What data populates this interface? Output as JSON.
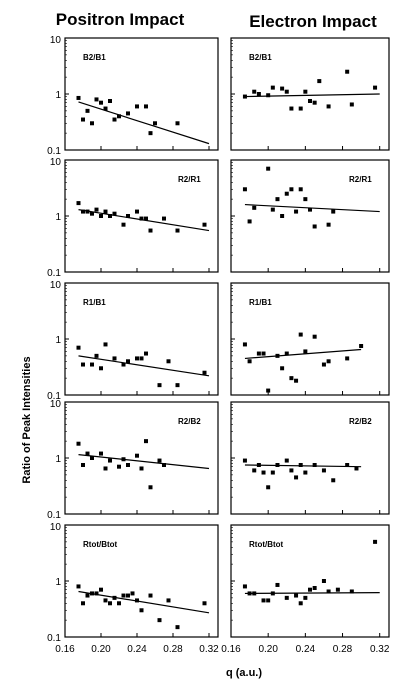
{
  "columns": {
    "left_title": "Positron Impact",
    "right_title": "Electron Impact"
  },
  "chart_data": {
    "type": "scatter",
    "ylabel": "Ratio of Peak Intensities",
    "xlabel": "q (a.u.)",
    "x_ticks": [
      "0.16",
      "0.20",
      "0.24",
      "0.28",
      "0.32"
    ],
    "y_ticks": [
      "0.1",
      "1",
      "10"
    ],
    "x_range": [
      0.16,
      0.33
    ],
    "y_range": [
      0.1,
      10
    ],
    "y_scale": "log",
    "marker": "filled-square",
    "grid": false,
    "panels": [
      {
        "column": "Positron Impact",
        "label": "B2/B1",
        "points": [
          [
            0.175,
            0.85
          ],
          [
            0.18,
            0.35
          ],
          [
            0.185,
            0.5
          ],
          [
            0.19,
            0.3
          ],
          [
            0.195,
            0.8
          ],
          [
            0.2,
            0.7
          ],
          [
            0.205,
            0.55
          ],
          [
            0.21,
            0.75
          ],
          [
            0.215,
            0.35
          ],
          [
            0.22,
            0.4
          ],
          [
            0.23,
            0.45
          ],
          [
            0.24,
            0.6
          ],
          [
            0.25,
            0.6
          ],
          [
            0.255,
            0.2
          ],
          [
            0.26,
            0.3
          ],
          [
            0.285,
            0.3
          ]
        ],
        "fit": [
          [
            0.175,
            0.72
          ],
          [
            0.32,
            0.13
          ]
        ]
      },
      {
        "column": "Electron Impact",
        "label": "B2/B1",
        "points": [
          [
            0.175,
            0.9
          ],
          [
            0.185,
            1.1
          ],
          [
            0.19,
            1.0
          ],
          [
            0.2,
            0.95
          ],
          [
            0.205,
            1.3
          ],
          [
            0.215,
            1.25
          ],
          [
            0.22,
            1.1
          ],
          [
            0.225,
            0.55
          ],
          [
            0.235,
            0.55
          ],
          [
            0.24,
            1.1
          ],
          [
            0.245,
            0.75
          ],
          [
            0.25,
            0.7
          ],
          [
            0.255,
            1.7
          ],
          [
            0.265,
            0.6
          ],
          [
            0.285,
            2.5
          ],
          [
            0.29,
            0.65
          ],
          [
            0.315,
            1.3
          ]
        ],
        "fit": [
          [
            0.175,
            0.9
          ],
          [
            0.32,
            1.0
          ]
        ]
      },
      {
        "column": "Positron Impact",
        "label": "R2/R1",
        "points": [
          [
            0.175,
            1.7
          ],
          [
            0.18,
            1.2
          ],
          [
            0.185,
            1.2
          ],
          [
            0.19,
            1.1
          ],
          [
            0.195,
            1.3
          ],
          [
            0.2,
            1.0
          ],
          [
            0.205,
            1.2
          ],
          [
            0.21,
            1.0
          ],
          [
            0.215,
            1.1
          ],
          [
            0.225,
            0.7
          ],
          [
            0.23,
            1.0
          ],
          [
            0.24,
            1.2
          ],
          [
            0.245,
            0.9
          ],
          [
            0.25,
            0.9
          ],
          [
            0.255,
            0.55
          ],
          [
            0.27,
            0.9
          ],
          [
            0.285,
            0.55
          ],
          [
            0.315,
            0.7
          ]
        ],
        "fit": [
          [
            0.175,
            1.3
          ],
          [
            0.32,
            0.55
          ]
        ]
      },
      {
        "column": "Electron Impact",
        "label": "R2/R1",
        "points": [
          [
            0.175,
            3.0
          ],
          [
            0.18,
            0.8
          ],
          [
            0.185,
            1.4
          ],
          [
            0.2,
            7.0
          ],
          [
            0.205,
            1.3
          ],
          [
            0.21,
            2.0
          ],
          [
            0.215,
            1.0
          ],
          [
            0.22,
            2.5
          ],
          [
            0.225,
            3.0
          ],
          [
            0.23,
            1.2
          ],
          [
            0.235,
            3.0
          ],
          [
            0.24,
            2.0
          ],
          [
            0.245,
            1.3
          ],
          [
            0.25,
            0.65
          ],
          [
            0.265,
            0.7
          ],
          [
            0.27,
            1.2
          ]
        ],
        "fit": [
          [
            0.175,
            1.6
          ],
          [
            0.32,
            1.2
          ]
        ]
      },
      {
        "column": "Positron Impact",
        "label": "R1/B1",
        "points": [
          [
            0.175,
            0.7
          ],
          [
            0.18,
            0.35
          ],
          [
            0.19,
            0.35
          ],
          [
            0.195,
            0.5
          ],
          [
            0.2,
            0.3
          ],
          [
            0.205,
            0.8
          ],
          [
            0.215,
            0.45
          ],
          [
            0.225,
            0.35
          ],
          [
            0.23,
            0.4
          ],
          [
            0.24,
            0.45
          ],
          [
            0.245,
            0.45
          ],
          [
            0.25,
            0.55
          ],
          [
            0.265,
            0.15
          ],
          [
            0.275,
            0.4
          ],
          [
            0.285,
            0.15
          ],
          [
            0.315,
            0.25
          ]
        ],
        "fit": [
          [
            0.175,
            0.5
          ],
          [
            0.32,
            0.22
          ]
        ]
      },
      {
        "column": "Electron Impact",
        "label": "R1/B1",
        "points": [
          [
            0.175,
            0.8
          ],
          [
            0.18,
            0.4
          ],
          [
            0.19,
            0.55
          ],
          [
            0.195,
            0.55
          ],
          [
            0.2,
            0.12
          ],
          [
            0.21,
            0.5
          ],
          [
            0.215,
            0.3
          ],
          [
            0.22,
            0.55
          ],
          [
            0.225,
            0.2
          ],
          [
            0.23,
            0.18
          ],
          [
            0.235,
            1.2
          ],
          [
            0.24,
            0.6
          ],
          [
            0.25,
            1.1
          ],
          [
            0.26,
            0.35
          ],
          [
            0.265,
            0.4
          ],
          [
            0.285,
            0.45
          ],
          [
            0.3,
            0.75
          ]
        ],
        "fit": [
          [
            0.175,
            0.45
          ],
          [
            0.3,
            0.65
          ]
        ]
      },
      {
        "column": "Positron Impact",
        "label": "R2/B2",
        "points": [
          [
            0.175,
            1.8
          ],
          [
            0.18,
            0.75
          ],
          [
            0.185,
            1.2
          ],
          [
            0.19,
            1.0
          ],
          [
            0.2,
            1.2
          ],
          [
            0.205,
            0.65
          ],
          [
            0.21,
            0.9
          ],
          [
            0.22,
            0.7
          ],
          [
            0.225,
            0.95
          ],
          [
            0.23,
            0.75
          ],
          [
            0.24,
            1.1
          ],
          [
            0.245,
            0.65
          ],
          [
            0.25,
            2.0
          ],
          [
            0.255,
            0.3
          ],
          [
            0.265,
            0.9
          ],
          [
            0.27,
            0.75
          ]
        ],
        "fit": [
          [
            0.175,
            1.15
          ],
          [
            0.32,
            0.65
          ]
        ]
      },
      {
        "column": "Electron Impact",
        "label": "R2/B2",
        "points": [
          [
            0.175,
            0.9
          ],
          [
            0.185,
            0.6
          ],
          [
            0.19,
            0.75
          ],
          [
            0.195,
            0.55
          ],
          [
            0.2,
            0.3
          ],
          [
            0.205,
            0.55
          ],
          [
            0.21,
            0.75
          ],
          [
            0.22,
            0.9
          ],
          [
            0.225,
            0.6
          ],
          [
            0.23,
            0.45
          ],
          [
            0.235,
            0.75
          ],
          [
            0.24,
            0.55
          ],
          [
            0.25,
            0.75
          ],
          [
            0.26,
            0.6
          ],
          [
            0.27,
            0.4
          ],
          [
            0.285,
            0.75
          ],
          [
            0.295,
            0.65
          ]
        ],
        "fit": [
          [
            0.175,
            0.75
          ],
          [
            0.3,
            0.7
          ]
        ]
      },
      {
        "column": "Positron Impact",
        "label": "Rtot/Btot",
        "points": [
          [
            0.175,
            0.8
          ],
          [
            0.18,
            0.4
          ],
          [
            0.185,
            0.55
          ],
          [
            0.19,
            0.6
          ],
          [
            0.195,
            0.6
          ],
          [
            0.2,
            0.7
          ],
          [
            0.205,
            0.45
          ],
          [
            0.21,
            0.4
          ],
          [
            0.215,
            0.5
          ],
          [
            0.22,
            0.4
          ],
          [
            0.225,
            0.55
          ],
          [
            0.23,
            0.55
          ],
          [
            0.235,
            0.6
          ],
          [
            0.24,
            0.45
          ],
          [
            0.245,
            0.3
          ],
          [
            0.255,
            0.55
          ],
          [
            0.265,
            0.2
          ],
          [
            0.275,
            0.45
          ],
          [
            0.285,
            0.15
          ],
          [
            0.315,
            0.4
          ]
        ],
        "fit": [
          [
            0.175,
            0.65
          ],
          [
            0.32,
            0.27
          ]
        ]
      },
      {
        "column": "Electron Impact",
        "label": "Rtot/Btot",
        "points": [
          [
            0.175,
            0.8
          ],
          [
            0.18,
            0.6
          ],
          [
            0.185,
            0.6
          ],
          [
            0.195,
            0.45
          ],
          [
            0.2,
            0.45
          ],
          [
            0.205,
            0.6
          ],
          [
            0.21,
            0.85
          ],
          [
            0.22,
            0.5
          ],
          [
            0.23,
            0.55
          ],
          [
            0.235,
            0.4
          ],
          [
            0.24,
            0.5
          ],
          [
            0.245,
            0.7
          ],
          [
            0.25,
            0.75
          ],
          [
            0.26,
            1.0
          ],
          [
            0.265,
            0.65
          ],
          [
            0.275,
            0.7
          ],
          [
            0.29,
            0.65
          ],
          [
            0.315,
            5.0
          ]
        ],
        "fit": [
          [
            0.175,
            0.6
          ],
          [
            0.32,
            0.62
          ]
        ]
      }
    ]
  }
}
